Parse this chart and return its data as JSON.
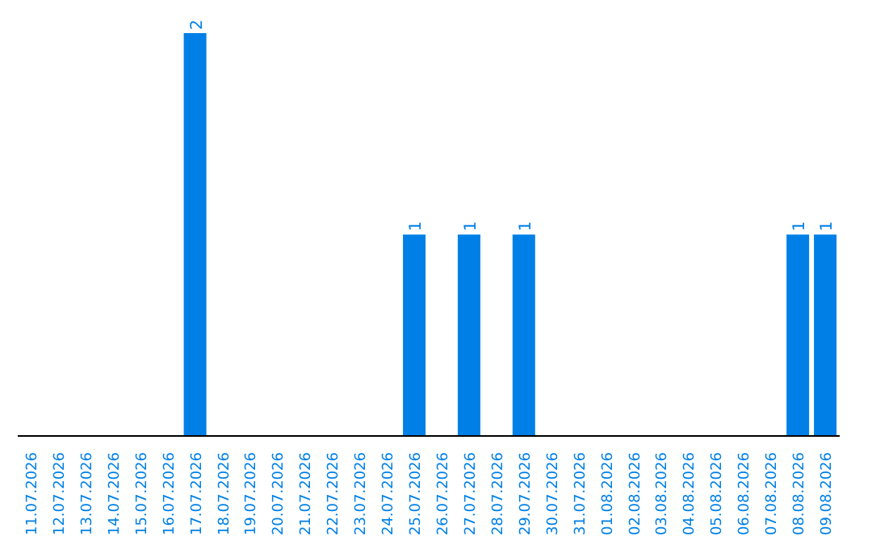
{
  "chart_data": {
    "type": "bar",
    "categories": [
      "11.07.2026",
      "12.07.2026",
      "13.07.2026",
      "14.07.2026",
      "15.07.2026",
      "16.07.2026",
      "17.07.2026",
      "18.07.2026",
      "19.07.2026",
      "20.07.2026",
      "21.07.2026",
      "22.07.2026",
      "23.07.2026",
      "24.07.2026",
      "25.07.2026",
      "26.07.2026",
      "27.07.2026",
      "28.07.2026",
      "29.07.2026",
      "30.07.2026",
      "31.07.2026",
      "01.08.2026",
      "02.08.2026",
      "03.08.2026",
      "04.08.2026",
      "05.08.2026",
      "06.08.2026",
      "07.08.2026",
      "08.08.2026",
      "09.08.2026"
    ],
    "values": [
      0,
      0,
      0,
      0,
      0,
      0,
      2,
      0,
      0,
      0,
      0,
      0,
      0,
      0,
      1,
      0,
      1,
      0,
      1,
      0,
      0,
      0,
      0,
      0,
      0,
      0,
      0,
      0,
      1,
      1
    ],
    "value_labels": [
      null,
      null,
      null,
      null,
      null,
      null,
      "2",
      null,
      null,
      null,
      null,
      null,
      null,
      null,
      "1",
      null,
      "1",
      null,
      "1",
      null,
      null,
      null,
      null,
      null,
      null,
      null,
      null,
      null,
      "1",
      "1"
    ],
    "color": "#0080e6",
    "ylim": [
      0,
      2.1
    ],
    "tick_labels": "x",
    "grid": false,
    "legend": false
  }
}
